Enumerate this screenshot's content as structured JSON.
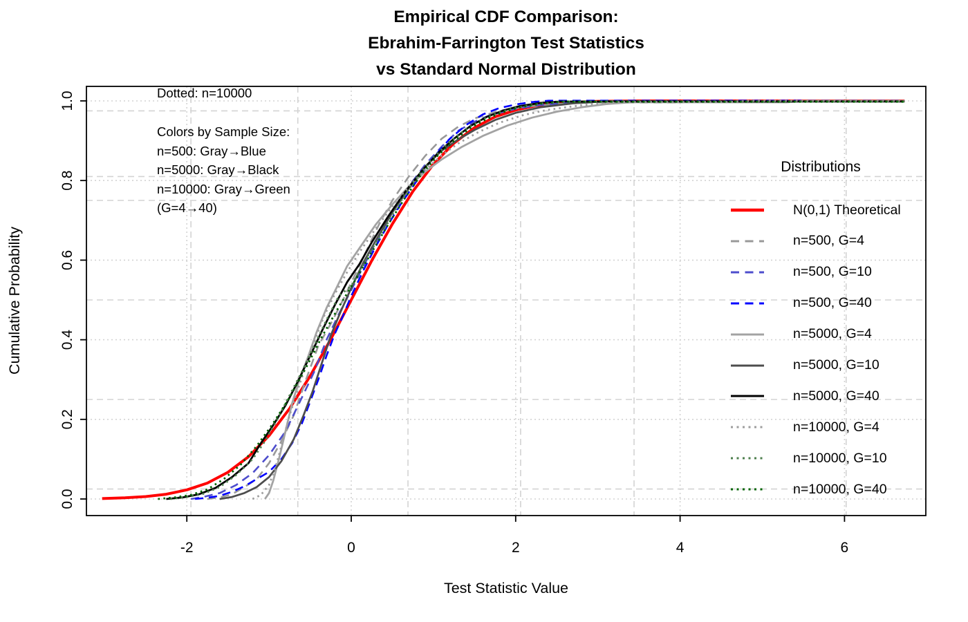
{
  "title": {
    "line1": "Empirical CDF Comparison:",
    "line2": "Ebrahim-Farrington Test Statistics",
    "line3": "vs Standard Normal Distribution"
  },
  "legend": {
    "title": "Distributions"
  },
  "chart_data": {
    "type": "line",
    "title": "Empirical CDF Comparison: Ebrahim-Farrington Test Statistics vs Standard Normal Distribution",
    "xlabel": "Test Statistic Value",
    "ylabel": "Cumulative Probability",
    "xlim": [
      -3.22,
      6.99
    ],
    "ylim": [
      -0.04,
      1.04
    ],
    "x_ticks": [
      "-2",
      "0",
      "2",
      "4",
      "6"
    ],
    "x_tick_values": [
      -2,
      0,
      2,
      4,
      6
    ],
    "y_ticks": [
      "0.0",
      "0.2",
      "0.4",
      "0.6",
      "0.8",
      "1.0"
    ],
    "y_tick_values": [
      0,
      0.2,
      0.4,
      0.6,
      0.8,
      1.0
    ],
    "grid": {
      "color": "#d3d3d3",
      "x_major": [
        -2,
        0,
        2,
        4,
        6
      ],
      "x_extra": [
        -1.95,
        -0.65,
        0.69,
        2.06,
        3.44,
        6.02
      ],
      "y_major": [
        0,
        0.2,
        0.4,
        0.6,
        0.8,
        1.0
      ],
      "y_extra": [
        0.025,
        0.25,
        0.5,
        0.75,
        0.81,
        0.975
      ]
    },
    "legend_position": "right",
    "annotations": {
      "top_note": "Dotted: n=10000",
      "color_note_lines": [
        "Colors by Sample Size:",
        "n=500: Gray→Blue",
        "n=5000: Gray→Black",
        "n=10000: Gray→Green",
        "(G=4→40)"
      ]
    },
    "series": [
      {
        "name": "N(0,1) Theoretical",
        "color": "#ff0000",
        "line_style": "solid",
        "line_width": 4,
        "points": [
          [
            -3.03,
            0.001
          ],
          [
            -2.75,
            0.003
          ],
          [
            -2.5,
            0.006
          ],
          [
            -2.25,
            0.012
          ],
          [
            -2.0,
            0.023
          ],
          [
            -1.75,
            0.04
          ],
          [
            -1.5,
            0.067
          ],
          [
            -1.25,
            0.106
          ],
          [
            -1.0,
            0.159
          ],
          [
            -0.75,
            0.227
          ],
          [
            -0.5,
            0.309
          ],
          [
            -0.25,
            0.401
          ],
          [
            0,
            0.5
          ],
          [
            0.25,
            0.599
          ],
          [
            0.5,
            0.691
          ],
          [
            0.75,
            0.773
          ],
          [
            1.0,
            0.841
          ],
          [
            1.25,
            0.894
          ],
          [
            1.5,
            0.933
          ],
          [
            1.75,
            0.96
          ],
          [
            2.0,
            0.977
          ],
          [
            2.25,
            0.988
          ],
          [
            2.5,
            0.994
          ],
          [
            2.75,
            0.997
          ],
          [
            3.0,
            0.999
          ],
          [
            3.5,
            1.0
          ],
          [
            6.73,
            1.0
          ]
        ]
      },
      {
        "name": "n=500, G=4",
        "color": "#999999",
        "line_style": "dashed",
        "line_width": 2.6,
        "points": [
          [
            -1.75,
            0
          ],
          [
            -1.6,
            0.004
          ],
          [
            -1.45,
            0.012
          ],
          [
            -1.3,
            0.03
          ],
          [
            -1.15,
            0.05
          ],
          [
            -1.0,
            0.09
          ],
          [
            -0.85,
            0.145
          ],
          [
            -0.7,
            0.21
          ],
          [
            -0.55,
            0.3
          ],
          [
            -0.4,
            0.385
          ],
          [
            -0.25,
            0.44
          ],
          [
            -0.1,
            0.5
          ],
          [
            0.05,
            0.565
          ],
          [
            0.2,
            0.63
          ],
          [
            0.35,
            0.695
          ],
          [
            0.5,
            0.75
          ],
          [
            0.7,
            0.81
          ],
          [
            0.9,
            0.862
          ],
          [
            1.1,
            0.905
          ],
          [
            1.3,
            0.935
          ],
          [
            1.5,
            0.956
          ],
          [
            1.8,
            0.975
          ],
          [
            2.1,
            0.985
          ],
          [
            2.5,
            0.992
          ],
          [
            2.9,
            0.996
          ],
          [
            4.0,
            0.996
          ],
          [
            4.2,
            1.0
          ],
          [
            6.73,
            1.0
          ]
        ]
      },
      {
        "name": "n=500, G=10",
        "color": "#4d4dcc",
        "line_style": "dashed",
        "line_width": 2.6,
        "points": [
          [
            -1.95,
            0
          ],
          [
            -1.8,
            0.005
          ],
          [
            -1.6,
            0.015
          ],
          [
            -1.4,
            0.035
          ],
          [
            -1.2,
            0.065
          ],
          [
            -1.0,
            0.11
          ],
          [
            -0.8,
            0.17
          ],
          [
            -0.6,
            0.255
          ],
          [
            -0.45,
            0.32
          ],
          [
            -0.3,
            0.4
          ],
          [
            -0.15,
            0.465
          ],
          [
            0,
            0.525
          ],
          [
            0.15,
            0.585
          ],
          [
            0.3,
            0.645
          ],
          [
            0.5,
            0.72
          ],
          [
            0.7,
            0.785
          ],
          [
            0.9,
            0.84
          ],
          [
            1.1,
            0.885
          ],
          [
            1.3,
            0.925
          ],
          [
            1.5,
            0.948
          ],
          [
            1.7,
            0.965
          ],
          [
            2.0,
            0.98
          ],
          [
            2.3,
            0.99
          ],
          [
            2.7,
            0.996
          ],
          [
            3.2,
            0.9995
          ],
          [
            6.73,
            0.9995
          ]
        ]
      },
      {
        "name": "n=500, G=40",
        "color": "#0000ff",
        "line_style": "dashed",
        "line_width": 2.6,
        "points": [
          [
            -1.9,
            0
          ],
          [
            -1.75,
            0.003
          ],
          [
            -1.6,
            0.008
          ],
          [
            -1.45,
            0.018
          ],
          [
            -1.3,
            0.032
          ],
          [
            -1.15,
            0.05
          ],
          [
            -1.0,
            0.068
          ],
          [
            -0.85,
            0.1
          ],
          [
            -0.72,
            0.14
          ],
          [
            -0.6,
            0.19
          ],
          [
            -0.5,
            0.245
          ],
          [
            -0.4,
            0.3
          ],
          [
            -0.3,
            0.36
          ],
          [
            -0.2,
            0.415
          ],
          [
            -0.1,
            0.46
          ],
          [
            0,
            0.51
          ],
          [
            0.15,
            0.575
          ],
          [
            0.3,
            0.635
          ],
          [
            0.45,
            0.69
          ],
          [
            0.6,
            0.74
          ],
          [
            0.8,
            0.8
          ],
          [
            1.0,
            0.858
          ],
          [
            1.2,
            0.905
          ],
          [
            1.4,
            0.94
          ],
          [
            1.6,
            0.966
          ],
          [
            1.8,
            0.982
          ],
          [
            2.0,
            0.991
          ],
          [
            2.2,
            0.997
          ],
          [
            2.4,
            1.0005
          ],
          [
            6.73,
            1.0005
          ]
        ]
      },
      {
        "name": "n=5000, G=4",
        "color": "#a3a3a3",
        "line_style": "solid",
        "line_width": 2.8,
        "points": [
          [
            -1.05,
            0
          ],
          [
            -1.0,
            0.015
          ],
          [
            -0.95,
            0.045
          ],
          [
            -0.88,
            0.1
          ],
          [
            -0.8,
            0.17
          ],
          [
            -0.72,
            0.24
          ],
          [
            -0.63,
            0.3
          ],
          [
            -0.52,
            0.36
          ],
          [
            -0.42,
            0.42
          ],
          [
            -0.3,
            0.48
          ],
          [
            -0.18,
            0.53
          ],
          [
            -0.05,
            0.585
          ],
          [
            0.1,
            0.63
          ],
          [
            0.3,
            0.69
          ],
          [
            0.5,
            0.74
          ],
          [
            0.7,
            0.785
          ],
          [
            0.9,
            0.822
          ],
          [
            1.1,
            0.853
          ],
          [
            1.35,
            0.885
          ],
          [
            1.6,
            0.912
          ],
          [
            1.9,
            0.938
          ],
          [
            2.2,
            0.958
          ],
          [
            2.5,
            0.973
          ],
          [
            2.8,
            0.984
          ],
          [
            3.1,
            0.992
          ],
          [
            3.4,
            0.9965
          ],
          [
            5.3,
            0.9965
          ],
          [
            5.5,
            1.0
          ],
          [
            6.73,
            1.0
          ]
        ]
      },
      {
        "name": "n=5000, G=10",
        "color": "#4d4d4d",
        "line_style": "solid",
        "line_width": 2.8,
        "points": [
          [
            -1.6,
            0
          ],
          [
            -1.45,
            0.005
          ],
          [
            -1.3,
            0.015
          ],
          [
            -1.15,
            0.03
          ],
          [
            -1.0,
            0.055
          ],
          [
            -0.85,
            0.095
          ],
          [
            -0.7,
            0.15
          ],
          [
            -0.58,
            0.21
          ],
          [
            -0.47,
            0.27
          ],
          [
            -0.36,
            0.34
          ],
          [
            -0.25,
            0.41
          ],
          [
            -0.13,
            0.47
          ],
          [
            0,
            0.53
          ],
          [
            0.15,
            0.595
          ],
          [
            0.3,
            0.65
          ],
          [
            0.5,
            0.72
          ],
          [
            0.7,
            0.78
          ],
          [
            0.9,
            0.835
          ],
          [
            1.1,
            0.875
          ],
          [
            1.3,
            0.903
          ],
          [
            1.5,
            0.927
          ],
          [
            1.75,
            0.952
          ],
          [
            2.0,
            0.97
          ],
          [
            2.3,
            0.984
          ],
          [
            2.7,
            0.994
          ],
          [
            3.1,
            0.999
          ],
          [
            6.73,
            0.999
          ]
        ]
      },
      {
        "name": "n=5000, G=40",
        "color": "#000000",
        "line_style": "solid",
        "line_width": 2.8,
        "points": [
          [
            -2.25,
            0
          ],
          [
            -2.05,
            0.004
          ],
          [
            -1.85,
            0.012
          ],
          [
            -1.65,
            0.028
          ],
          [
            -1.45,
            0.055
          ],
          [
            -1.25,
            0.09
          ],
          [
            -1.1,
            0.14
          ],
          [
            -0.95,
            0.185
          ],
          [
            -0.8,
            0.235
          ],
          [
            -0.65,
            0.295
          ],
          [
            -0.5,
            0.36
          ],
          [
            -0.35,
            0.425
          ],
          [
            -0.2,
            0.487
          ],
          [
            -0.05,
            0.545
          ],
          [
            0.1,
            0.59
          ],
          [
            0.25,
            0.645
          ],
          [
            0.45,
            0.71
          ],
          [
            0.65,
            0.77
          ],
          [
            0.85,
            0.822
          ],
          [
            1.05,
            0.868
          ],
          [
            1.25,
            0.905
          ],
          [
            1.45,
            0.937
          ],
          [
            1.65,
            0.96
          ],
          [
            1.85,
            0.976
          ],
          [
            2.05,
            0.987
          ],
          [
            2.3,
            0.995
          ],
          [
            2.55,
            0.9985
          ],
          [
            6.73,
            0.9985
          ]
        ]
      },
      {
        "name": "n=10000, G=4",
        "color": "#9e9e9e",
        "line_style": "dotted",
        "line_width": 2.8,
        "points": [
          [
            -1.2,
            0
          ],
          [
            -1.1,
            0.01
          ],
          [
            -1.0,
            0.035
          ],
          [
            -0.92,
            0.08
          ],
          [
            -0.84,
            0.14
          ],
          [
            -0.75,
            0.21
          ],
          [
            -0.65,
            0.275
          ],
          [
            -0.55,
            0.335
          ],
          [
            -0.45,
            0.395
          ],
          [
            -0.33,
            0.46
          ],
          [
            -0.2,
            0.515
          ],
          [
            -0.05,
            0.57
          ],
          [
            0.1,
            0.62
          ],
          [
            0.3,
            0.68
          ],
          [
            0.5,
            0.735
          ],
          [
            0.7,
            0.785
          ],
          [
            0.9,
            0.828
          ],
          [
            1.1,
            0.863
          ],
          [
            1.3,
            0.893
          ],
          [
            1.55,
            0.922
          ],
          [
            1.8,
            0.945
          ],
          [
            2.1,
            0.965
          ],
          [
            2.4,
            0.978
          ],
          [
            2.8,
            0.989
          ],
          [
            3.25,
            0.997
          ],
          [
            4.6,
            0.997
          ],
          [
            4.8,
            1.0
          ],
          [
            6.73,
            1.0
          ]
        ]
      },
      {
        "name": "n=10000, G=10",
        "color": "#4d7f4d",
        "line_style": "dotted",
        "line_width": 2.8,
        "points": [
          [
            -2.2,
            0
          ],
          [
            -2.0,
            0.005
          ],
          [
            -1.8,
            0.013
          ],
          [
            -1.6,
            0.03
          ],
          [
            -1.4,
            0.06
          ],
          [
            -1.2,
            0.1
          ],
          [
            -1.05,
            0.145
          ],
          [
            -0.9,
            0.2
          ],
          [
            -0.75,
            0.26
          ],
          [
            -0.6,
            0.32
          ],
          [
            -0.45,
            0.385
          ],
          [
            -0.3,
            0.45
          ],
          [
            -0.15,
            0.51
          ],
          [
            0,
            0.535
          ],
          [
            0.2,
            0.61
          ],
          [
            0.4,
            0.678
          ],
          [
            0.6,
            0.748
          ],
          [
            0.8,
            0.808
          ],
          [
            1.0,
            0.858
          ],
          [
            1.2,
            0.898
          ],
          [
            1.4,
            0.93
          ],
          [
            1.6,
            0.954
          ],
          [
            1.8,
            0.971
          ],
          [
            2.0,
            0.983
          ],
          [
            2.3,
            0.993
          ],
          [
            2.6,
            0.9985
          ],
          [
            3.0,
            0.9985
          ],
          [
            6.73,
            0.9985
          ]
        ]
      },
      {
        "name": "n=10000, G=40",
        "color": "#006400",
        "line_style": "dotted",
        "line_width": 2.8,
        "points": [
          [
            -2.35,
            0
          ],
          [
            -2.15,
            0.004
          ],
          [
            -1.95,
            0.01
          ],
          [
            -1.75,
            0.024
          ],
          [
            -1.55,
            0.05
          ],
          [
            -1.35,
            0.085
          ],
          [
            -1.15,
            0.133
          ],
          [
            -0.95,
            0.19
          ],
          [
            -0.75,
            0.255
          ],
          [
            -0.55,
            0.33
          ],
          [
            -0.35,
            0.41
          ],
          [
            -0.15,
            0.483
          ],
          [
            0.05,
            0.55
          ],
          [
            0.25,
            0.62
          ],
          [
            0.45,
            0.69
          ],
          [
            0.65,
            0.755
          ],
          [
            0.85,
            0.815
          ],
          [
            1.05,
            0.862
          ],
          [
            1.25,
            0.9
          ],
          [
            1.45,
            0.932
          ],
          [
            1.65,
            0.955
          ],
          [
            1.85,
            0.972
          ],
          [
            2.05,
            0.984
          ],
          [
            2.3,
            0.993
          ],
          [
            2.55,
            0.998
          ],
          [
            6.73,
            0.998
          ]
        ]
      }
    ]
  }
}
